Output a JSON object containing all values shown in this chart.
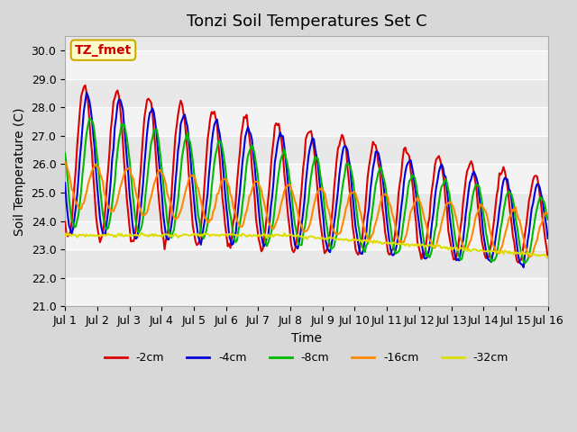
{
  "title": "Tonzi Soil Temperatures Set C",
  "xlabel": "Time",
  "ylabel": "Soil Temperature (C)",
  "ylim": [
    21.0,
    30.5
  ],
  "yticks": [
    21.0,
    22.0,
    23.0,
    24.0,
    25.0,
    26.0,
    27.0,
    28.0,
    29.0,
    30.0
  ],
  "xlim_days": [
    0,
    15
  ],
  "xtick_labels": [
    "Jul 1",
    "Jul 2",
    "Jul 3",
    "Jul 4",
    "Jul 5",
    "Jul 6",
    "Jul 7",
    "Jul 8",
    "Jul 9",
    "Jul 10",
    "Jul 11",
    "Jul 12",
    "Jul 13",
    "Jul 14",
    "Jul 15",
    "Jul 16"
  ],
  "annotation_text": "TZ_fmet",
  "annotation_bg": "#ffffcc",
  "annotation_border": "#ccaa00",
  "series": {
    "-2cm": {
      "color": "#dd0000",
      "linewidth": 1.5
    },
    "-4cm": {
      "color": "#0000dd",
      "linewidth": 1.5
    },
    "-8cm": {
      "color": "#00bb00",
      "linewidth": 1.5
    },
    "-16cm": {
      "color": "#ff8800",
      "linewidth": 1.5
    },
    "-32cm": {
      "color": "#dddd00",
      "linewidth": 1.5
    }
  },
  "legend_order": [
    "-2cm",
    "-4cm",
    "-8cm",
    "-16cm",
    "-32cm"
  ],
  "bg_color": "#d8d8d8",
  "plot_bg": "#e8e8e8",
  "grid_color": "#ffffff",
  "title_fontsize": 13,
  "label_fontsize": 10,
  "tick_fontsize": 9
}
